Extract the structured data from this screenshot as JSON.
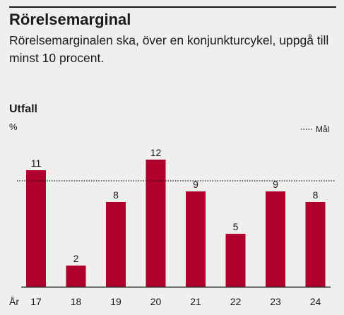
{
  "header": {
    "title": "Rörelsemarginal",
    "subtitle": "Rörelsemarginalen ska, över en konjunkturcykel, uppgå till minst 10 procent."
  },
  "panel": {
    "title": "Utfall"
  },
  "colors": {
    "bar": "#b1002e",
    "text": "#1a1a1a",
    "background": "#efefed"
  },
  "chart_data": {
    "type": "bar",
    "ylabel": "%",
    "xlabel": "År",
    "categories": [
      "17",
      "18",
      "19",
      "20",
      "21",
      "22",
      "23",
      "24"
    ],
    "values": [
      11,
      2,
      8,
      12,
      9,
      5,
      9,
      8
    ],
    "data_labels": [
      "11",
      "2",
      "8",
      "12",
      "9",
      "5",
      "9",
      "8"
    ],
    "ylim": [
      0,
      14
    ],
    "grid": false,
    "target": {
      "label": "Mål",
      "value": 10,
      "style": "dotted"
    },
    "legend": {
      "position": "top-right",
      "entries": [
        "Mål"
      ]
    }
  }
}
